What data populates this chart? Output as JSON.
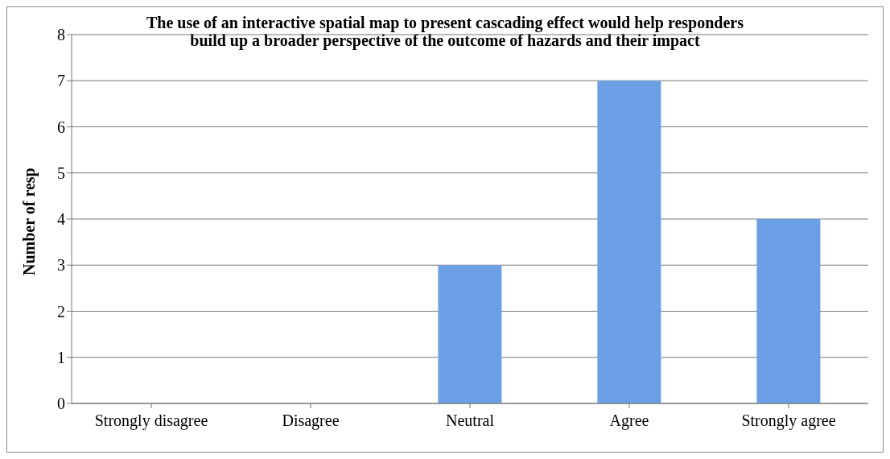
{
  "chart_data": {
    "type": "bar",
    "title": "The use of an interactive spatial map to present cascading effect would help responders build up a broader perspective of the outcome of hazards and their impact",
    "ylabel": "Number of resp",
    "categories": [
      "Strongly disagree",
      "Disagree",
      "Neutral",
      "Agree",
      "Strongly agree"
    ],
    "values": [
      0,
      0,
      3,
      7,
      4
    ],
    "color": "#6a9fe6",
    "ylim": [
      0,
      8
    ],
    "yticks": [
      0,
      1,
      2,
      3,
      4,
      5,
      6,
      7,
      8
    ],
    "grid": "y"
  }
}
